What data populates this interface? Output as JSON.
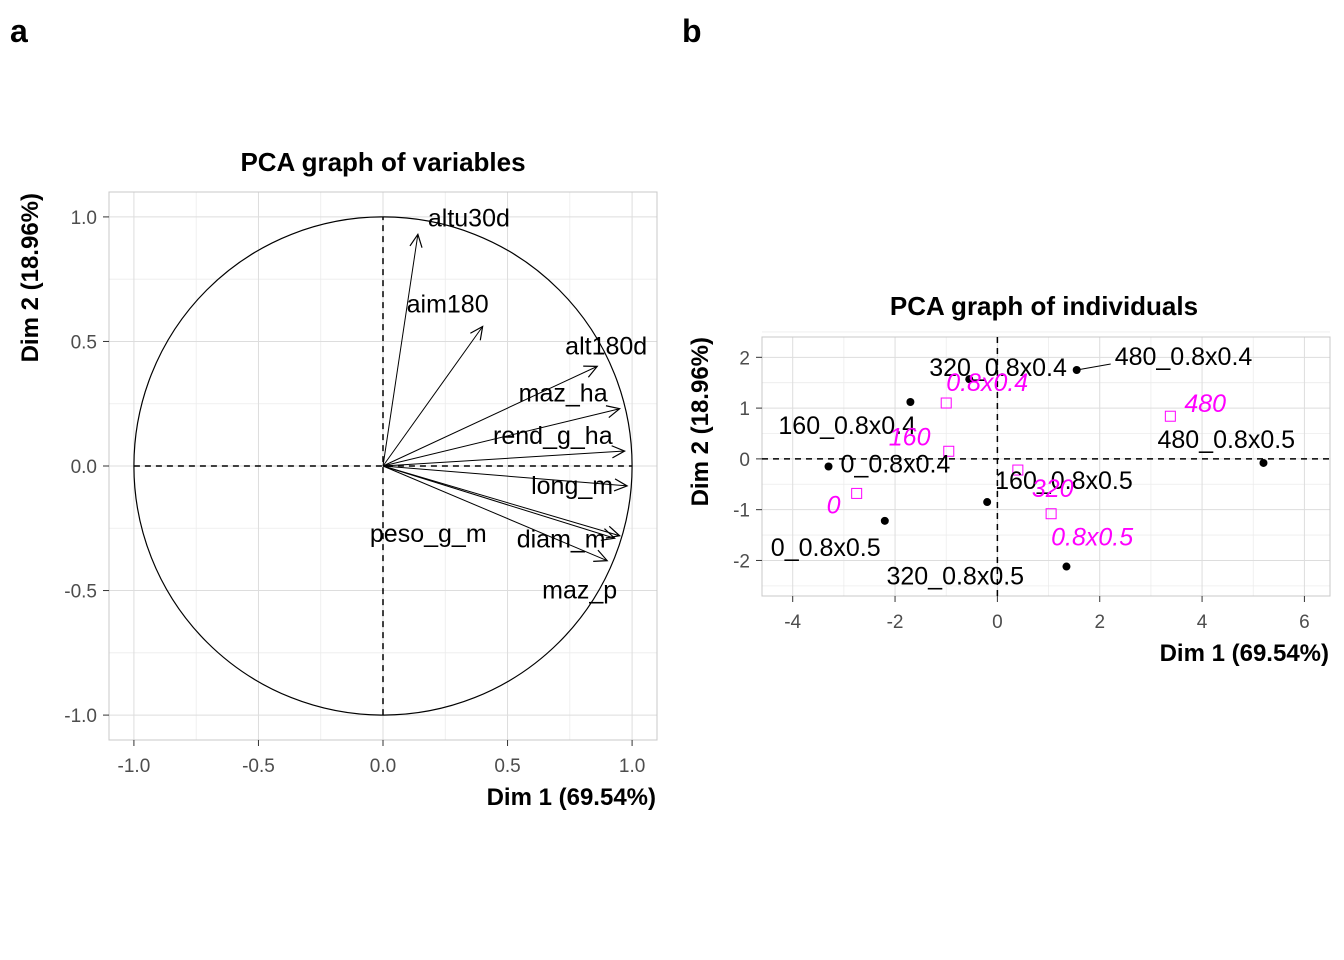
{
  "panels": {
    "a": "a",
    "b": "b"
  },
  "colors": {
    "supplementary": "#ff00ff",
    "grid": "#dddddd",
    "border": "#c8c8c8",
    "text": "#000000",
    "tick": "#4d4d4d"
  },
  "chart_data": [
    {
      "type": "scatter",
      "subtype": "pca-variables-correlation-circle",
      "title": "PCA graph of variables",
      "xlabel": "Dim 1 (69.54%)",
      "ylabel": "Dim 2 (18.96%)",
      "xlim": [
        -1.1,
        1.1
      ],
      "ylim": [
        -1.1,
        1.1
      ],
      "xticks": [
        -1.0,
        -0.5,
        0.0,
        0.5,
        1.0
      ],
      "yticks": [
        -1.0,
        -0.5,
        0.0,
        0.5,
        1.0
      ],
      "tick_labels_x": [
        "-1.0",
        "-0.5",
        "0.0",
        "0.5",
        "1.0"
      ],
      "tick_labels_y": [
        "-1.0",
        "-0.5",
        "0.0",
        "0.5",
        "1.0"
      ],
      "grid": true,
      "unit_circle": true,
      "variables": [
        {
          "name": "altu30d",
          "x": 0.14,
          "y": 0.93,
          "label_anchor": "ne"
        },
        {
          "name": "aim180",
          "x": 0.4,
          "y": 0.56,
          "label_anchor": "nw"
        },
        {
          "name": "alt180d",
          "x": 0.86,
          "y": 0.4,
          "label_anchor": "ne"
        },
        {
          "name": "maz_ha",
          "x": 0.95,
          "y": 0.23,
          "label_anchor": "n"
        },
        {
          "name": "rend_g_ha",
          "x": 0.97,
          "y": 0.06,
          "label_anchor": "n"
        },
        {
          "name": "long_m",
          "x": 0.98,
          "y": -0.08,
          "label_anchor": "n"
        },
        {
          "name": "peso_g_m",
          "x": 0.93,
          "y": -0.29,
          "label_anchor": "w"
        },
        {
          "name": "diam_m",
          "x": 0.95,
          "y": -0.28,
          "label_anchor": "s"
        },
        {
          "name": "maz_p",
          "x": 0.9,
          "y": -0.38,
          "label_anchor": "s"
        }
      ]
    },
    {
      "type": "scatter",
      "subtype": "pca-individuals",
      "title": "PCA graph of individuals",
      "xlabel": "Dim 1 (69.54%)",
      "ylabel": "Dim 2 (18.96%)",
      "xlim": [
        -4.6,
        6.5
      ],
      "ylim": [
        -2.7,
        2.4
      ],
      "xticks": [
        -4,
        -2,
        0,
        2,
        4,
        6
      ],
      "yticks": [
        -2,
        -1,
        0,
        1,
        2
      ],
      "tick_labels_x": [
        "-4",
        "-2",
        "0",
        "2",
        "4",
        "6"
      ],
      "tick_labels_y": [
        "-2",
        "-1",
        "0",
        "1",
        "2"
      ],
      "grid": true,
      "individuals": [
        {
          "name": "320_0.8x0.4",
          "x": -0.55,
          "y": 1.57
        },
        {
          "name": "480_0.8x0.4",
          "x": 1.55,
          "y": 1.75
        },
        {
          "name": "160_0.8x0.4",
          "x": -1.7,
          "y": 1.12
        },
        {
          "name": "480_0.8x0.5",
          "x": 5.2,
          "y": -0.08
        },
        {
          "name": "0_0.8x0.4",
          "x": -3.3,
          "y": -0.15
        },
        {
          "name": "160_0.8x0.5",
          "x": -0.2,
          "y": -0.85
        },
        {
          "name": "0_0.8x0.5",
          "x": -2.2,
          "y": -1.22
        },
        {
          "name": "320_0.8x0.5",
          "x": 1.35,
          "y": -2.12
        }
      ],
      "supplementary_categories": [
        {
          "name": "0.8x0.4",
          "x": -1.0,
          "y": 1.1
        },
        {
          "name": "480",
          "x": 3.38,
          "y": 0.84
        },
        {
          "name": "160",
          "x": -0.95,
          "y": 0.15
        },
        {
          "name": "0",
          "x": -2.75,
          "y": -0.68
        },
        {
          "name": "320",
          "x": 0.4,
          "y": -0.22
        },
        {
          "name": "0.8x0.5",
          "x": 1.05,
          "y": -1.08
        }
      ]
    }
  ]
}
